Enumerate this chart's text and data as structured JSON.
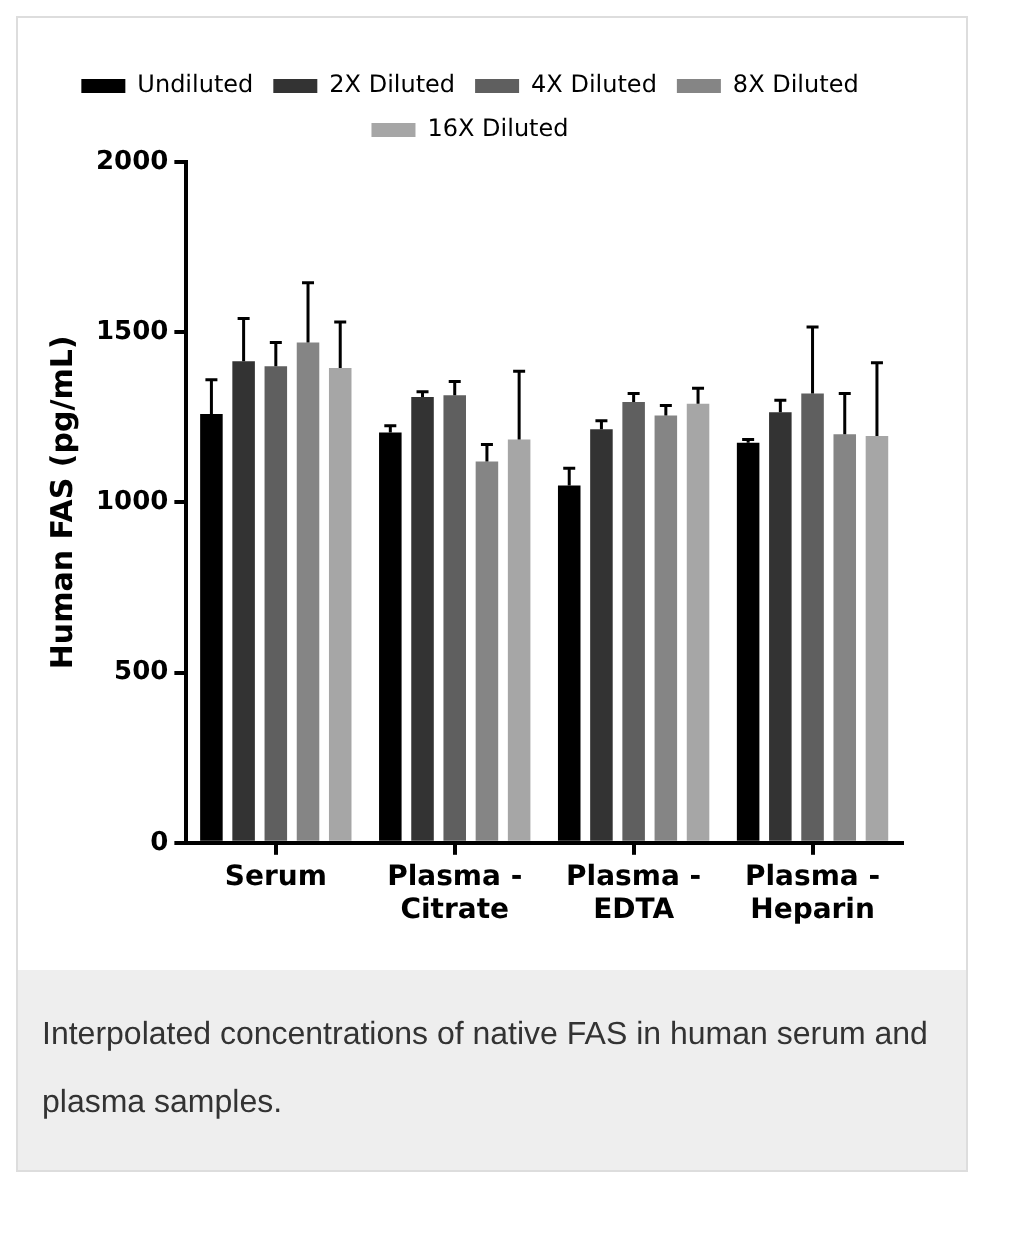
{
  "chart_data": {
    "type": "bar",
    "categories": [
      "Serum",
      "Plasma - Citrate",
      "Plasma - EDTA",
      "Plasma - Heparin"
    ],
    "ylabel": "Human FAS (pg/mL)",
    "ylim": [
      0,
      2000
    ],
    "yticks": [
      0,
      500,
      1000,
      1500,
      2000
    ],
    "grid": false,
    "legend": "top",
    "series": [
      {
        "name": "Undiluted",
        "color": "#000000",
        "values": [
          1260,
          1205,
          1050,
          1175
        ],
        "errors": [
          [
            1260,
            1360
          ],
          [
            1205,
            1225
          ],
          [
            1050,
            1100
          ],
          [
            1175,
            1185
          ]
        ]
      },
      {
        "name": "2X Diluted",
        "color": "#333333",
        "values": [
          1415,
          1310,
          1215,
          1265
        ],
        "errors": [
          [
            1415,
            1540
          ],
          [
            1310,
            1325
          ],
          [
            1215,
            1240
          ],
          [
            1265,
            1300
          ]
        ]
      },
      {
        "name": "4X Diluted",
        "color": "#5f5f5f",
        "values": [
          1400,
          1315,
          1295,
          1320
        ],
        "errors": [
          [
            1400,
            1470
          ],
          [
            1315,
            1355
          ],
          [
            1295,
            1320
          ],
          [
            1320,
            1515
          ]
        ]
      },
      {
        "name": "8X Diluted",
        "color": "#858585",
        "values": [
          1470,
          1120,
          1255,
          1200
        ],
        "errors": [
          [
            1470,
            1645
          ],
          [
            1120,
            1170
          ],
          [
            1255,
            1285
          ],
          [
            1200,
            1320
          ]
        ]
      },
      {
        "name": "16X Diluted",
        "color": "#a6a6a6",
        "values": [
          1395,
          1185,
          1290,
          1195
        ],
        "errors": [
          [
            1395,
            1530
          ],
          [
            1185,
            1385
          ],
          [
            1290,
            1335
          ],
          [
            1195,
            1410
          ]
        ]
      }
    ],
    "annotations": [
      "Interpolated concentrations of native FAS in human serum and plasma samples."
    ]
  }
}
